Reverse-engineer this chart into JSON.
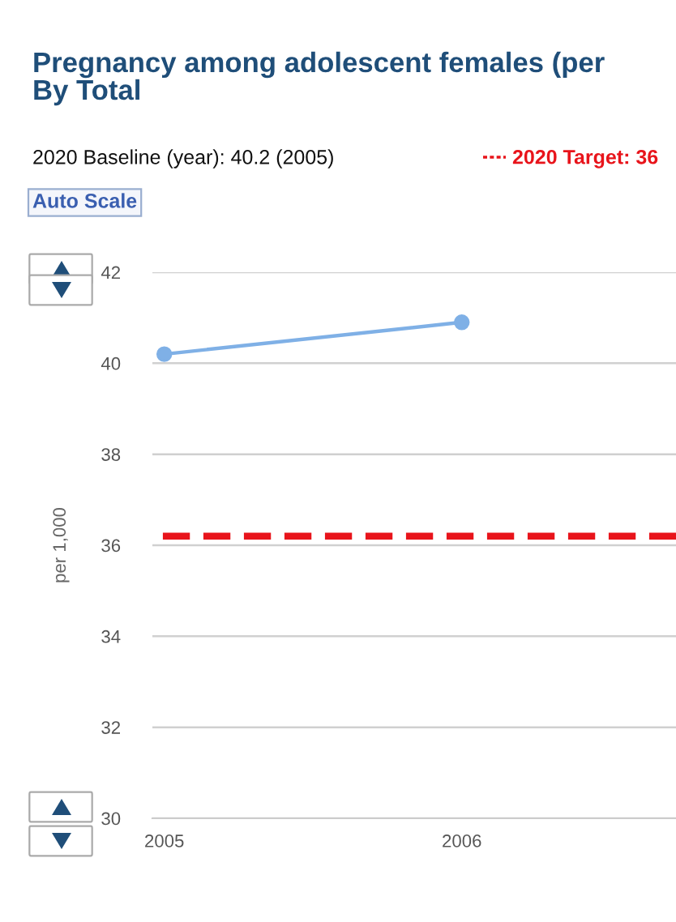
{
  "chart_data": {
    "type": "line",
    "title": "Pregnancy among adolescent females (per",
    "subtitle": "By Total",
    "ylabel": "per 1,000",
    "annotations": [
      "2020 Baseline (year): 40.2 (2005)",
      "Auto Scale"
    ],
    "x": [
      2005,
      2006
    ],
    "series": [
      {
        "color": "#7fb0e6",
        "values": [
          40.2,
          40.9
        ]
      }
    ],
    "xlim": [
      2004.96,
      2006.72
    ],
    "xticks": [
      2005,
      2006
    ],
    "ylim": [
      30,
      42
    ],
    "yticks": [
      30,
      32,
      34,
      36,
      38,
      40,
      42
    ],
    "ref_lines": [
      {
        "axis": "y",
        "value": 36.2,
        "label": "2020 Target: 36",
        "color": "#e8141b",
        "line_style": "dashed"
      }
    ],
    "grid": "y",
    "marker": "circle",
    "line_style": "solid",
    "legend": "top right"
  }
}
